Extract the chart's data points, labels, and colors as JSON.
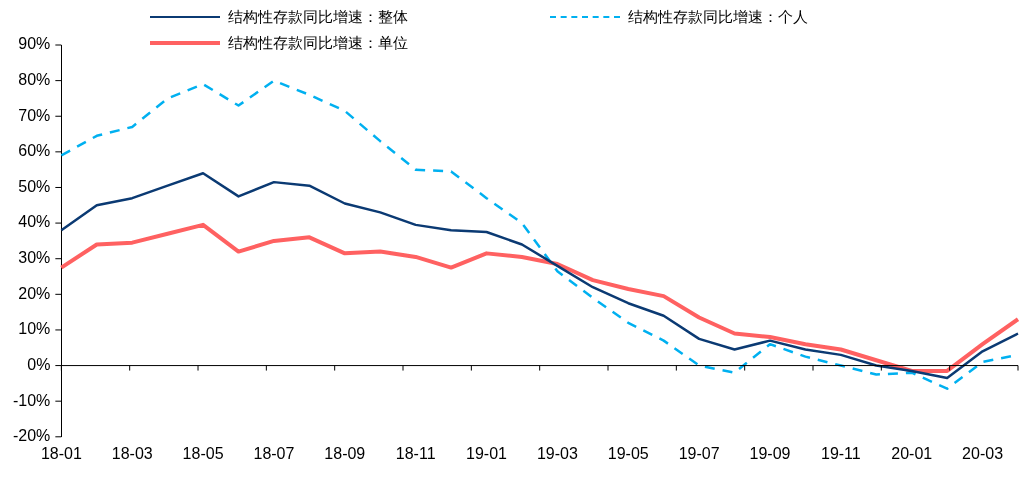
{
  "chart_data": {
    "type": "line",
    "categories": [
      "18-01",
      null,
      "18-03",
      null,
      "18-05",
      null,
      "18-07",
      null,
      "18-09",
      null,
      "18-11",
      null,
      "19-01",
      null,
      "19-03",
      null,
      "19-05",
      null,
      "19-07",
      null,
      "19-09",
      null,
      "19-11",
      null,
      "20-01",
      null,
      "20-03",
      null
    ],
    "series": [
      {
        "name": "结构性存款同比增速：整体",
        "color": "#0b3a73",
        "line_style": "solid",
        "values": [
          38,
          45,
          47,
          50.5,
          54,
          47.5,
          51.5,
          50.5,
          45.5,
          43,
          39.5,
          38,
          37.5,
          34,
          28,
          22,
          17.5,
          14,
          7.5,
          4.5,
          7,
          4.5,
          3,
          0,
          -1.5,
          -3.5,
          4,
          9
        ]
      },
      {
        "name": "结构性存款同比增速：个人",
        "color": "#00b0f0",
        "line_style": "dashed",
        "values": [
          59,
          64.5,
          67,
          75,
          79,
          73,
          80,
          76,
          71.5,
          63,
          55,
          54.5,
          47,
          40,
          26.5,
          19,
          12,
          7,
          0,
          -2,
          6,
          2.5,
          0,
          -2.5,
          -2,
          -6.5,
          1,
          3
        ]
      },
      {
        "name": "结构性存款同比增速：单位",
        "color": "#ff6161",
        "line_style": "solid",
        "values": [
          27.5,
          34,
          34.5,
          37,
          39.5,
          32,
          35,
          36,
          31.5,
          32,
          30.5,
          27.5,
          31.5,
          30.5,
          28.5,
          24,
          21.5,
          19.5,
          13.5,
          9,
          8,
          6,
          4.5,
          1.5,
          -1.5,
          -1.5,
          6,
          13
        ]
      }
    ],
    "ylim": [
      -20,
      90
    ],
    "yticks": [
      {
        "value": -20,
        "label": "-20%"
      },
      {
        "value": -10,
        "label": "-10%"
      },
      {
        "value": 0,
        "label": "0%"
      },
      {
        "value": 10,
        "label": "10%"
      },
      {
        "value": 20,
        "label": "20%"
      },
      {
        "value": 30,
        "label": "30%"
      },
      {
        "value": 40,
        "label": "40%"
      },
      {
        "value": 50,
        "label": "50%"
      },
      {
        "value": 60,
        "label": "60%"
      },
      {
        "value": 70,
        "label": "70%"
      },
      {
        "value": 80,
        "label": "80%"
      },
      {
        "value": 90,
        "label": "90%"
      }
    ],
    "ref_lines": [
      {
        "axis": "y",
        "value": 0,
        "color": "#000000",
        "line_style": "solid"
      }
    ],
    "grid": false,
    "legend": "top",
    "marker": "none"
  }
}
